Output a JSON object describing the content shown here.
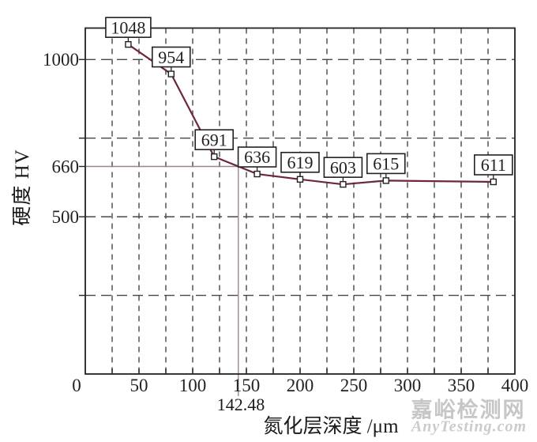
{
  "watermark": {
    "line1": "嘉峪检测网",
    "line2": "AnyTesting.com"
  },
  "chart_data": {
    "type": "line",
    "title": "",
    "xlabel": "氮化层深度 /μm",
    "ylabel": "硬度 HV",
    "x": [
      40,
      80,
      120,
      160,
      200,
      240,
      280,
      380
    ],
    "y": [
      1048,
      954,
      691,
      636,
      619,
      603,
      615,
      611
    ],
    "point_labels": [
      "1048",
      "954",
      "691",
      "636",
      "619",
      "603",
      "615",
      "611"
    ],
    "xlim": [
      0,
      400
    ],
    "ylim": [
      0,
      1100
    ],
    "x_tick_labels": [
      0,
      50,
      100,
      150,
      200,
      250,
      300,
      350,
      400
    ],
    "x_minor_tick_step": 25,
    "y_grid_values": [
      250,
      500,
      750,
      1000
    ],
    "y_tick_values": [
      250,
      500,
      660,
      750,
      1000
    ],
    "y_tick_labels": [
      1000,
      660,
      500
    ],
    "grid": "dashed",
    "legend": "none",
    "threshold": {
      "hardness": 660,
      "depth": 142.48,
      "depth_label": "142.48"
    },
    "colors": {
      "line": "#6e2737",
      "guide": "#9a8888",
      "grid": "#474747",
      "axis": "#222222",
      "marker_fill": "#ffffff",
      "label_box_fill": "#ffffff",
      "watermark": "#c6c6c6"
    }
  }
}
